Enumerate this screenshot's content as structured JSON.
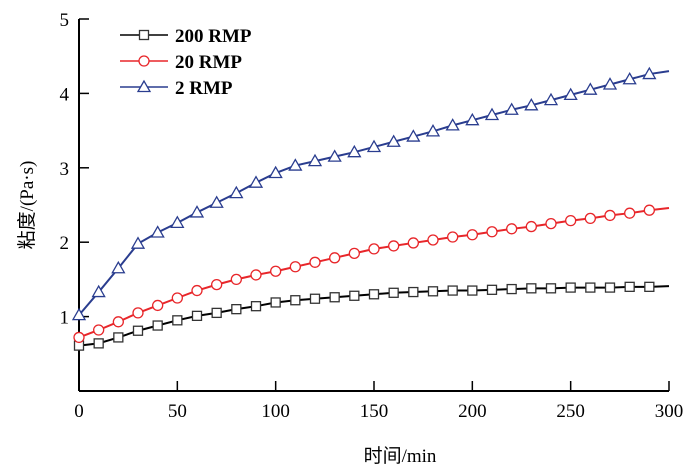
{
  "chart_data": {
    "type": "line",
    "title": "",
    "xlabel": "时间/min",
    "ylabel": "粘度/(Pa·s)",
    "xlim": [
      0,
      300
    ],
    "ylim": [
      0,
      5
    ],
    "xticks": [
      0,
      50,
      100,
      150,
      200,
      250,
      300
    ],
    "yticks": [
      1,
      2,
      3,
      4,
      5
    ],
    "grid": false,
    "legend_position": "top-left",
    "x": [
      0,
      10,
      20,
      30,
      40,
      50,
      60,
      70,
      80,
      90,
      100,
      110,
      120,
      130,
      140,
      150,
      160,
      170,
      180,
      190,
      200,
      210,
      220,
      230,
      240,
      250,
      260,
      270,
      280,
      290,
      300
    ],
    "series": [
      {
        "name": "200 RMP",
        "color": "#000000",
        "marker": "square",
        "values": [
          0.61,
          0.64,
          0.72,
          0.81,
          0.88,
          0.95,
          1.01,
          1.05,
          1.1,
          1.14,
          1.19,
          1.22,
          1.24,
          1.26,
          1.28,
          1.3,
          1.32,
          1.33,
          1.34,
          1.35,
          1.35,
          1.36,
          1.37,
          1.38,
          1.38,
          1.39,
          1.39,
          1.39,
          1.4,
          1.4,
          1.41
        ]
      },
      {
        "name": "20 RMP",
        "color": "#e8262a",
        "marker": "circle",
        "values": [
          0.72,
          0.82,
          0.93,
          1.05,
          1.15,
          1.25,
          1.35,
          1.43,
          1.5,
          1.56,
          1.61,
          1.67,
          1.73,
          1.79,
          1.85,
          1.91,
          1.95,
          1.99,
          2.03,
          2.07,
          2.1,
          2.14,
          2.18,
          2.21,
          2.25,
          2.29,
          2.32,
          2.36,
          2.39,
          2.43,
          2.46
        ]
      },
      {
        "name": "2 RMP",
        "color": "#2a3d8f",
        "marker": "triangle",
        "values": [
          1.02,
          1.33,
          1.65,
          1.98,
          2.13,
          2.26,
          2.4,
          2.53,
          2.66,
          2.8,
          2.93,
          3.03,
          3.09,
          3.15,
          3.21,
          3.28,
          3.35,
          3.42,
          3.49,
          3.57,
          3.64,
          3.71,
          3.78,
          3.84,
          3.91,
          3.98,
          4.05,
          4.12,
          4.19,
          4.26,
          4.3
        ]
      }
    ]
  }
}
